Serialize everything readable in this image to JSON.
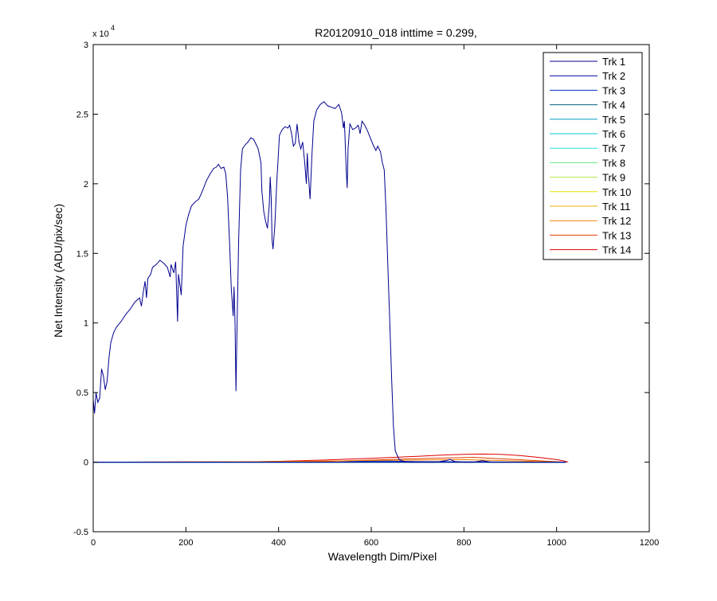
{
  "chart_data": {
    "type": "line",
    "title": "R20120910_018 inttime = 0.299,",
    "xlabel": "Wavelength Dim/Pixel",
    "ylabel": "Net Intensity (ADU/pix/sec)",
    "xlim": [
      0,
      1200
    ],
    "ylim": [
      -5000,
      30000
    ],
    "x_ticks": [
      0,
      200,
      400,
      600,
      800,
      1000,
      1200
    ],
    "x_tick_labels": [
      "0",
      "200",
      "400",
      "600",
      "800",
      "1000",
      "1200"
    ],
    "y_ticks": [
      -5000,
      0,
      5000,
      10000,
      15000,
      20000,
      25000,
      30000
    ],
    "y_tick_labels": [
      "-0.5",
      "0",
      "0.5",
      "1",
      "1.5",
      "2",
      "2.5",
      "3"
    ],
    "y_exponent_base": "x 10",
    "y_exponent_power": "4",
    "legend_position": "top-right",
    "grid": false,
    "series": [
      {
        "name": "Trk 1",
        "color": "#00008F",
        "points": [
          [
            0,
            4500
          ],
          [
            3,
            3500
          ],
          [
            6,
            5000
          ],
          [
            10,
            4300
          ],
          [
            14,
            4600
          ],
          [
            18,
            6700
          ],
          [
            22,
            6200
          ],
          [
            26,
            5200
          ],
          [
            30,
            5800
          ],
          [
            34,
            7500
          ],
          [
            38,
            8600
          ],
          [
            44,
            9300
          ],
          [
            50,
            9700
          ],
          [
            60,
            10100
          ],
          [
            70,
            10600
          ],
          [
            80,
            11000
          ],
          [
            90,
            11500
          ],
          [
            100,
            11800
          ],
          [
            104,
            11200
          ],
          [
            108,
            12200
          ],
          [
            112,
            13000
          ],
          [
            115,
            11800
          ],
          [
            118,
            13200
          ],
          [
            124,
            13500
          ],
          [
            128,
            14000
          ],
          [
            136,
            14200
          ],
          [
            144,
            14500
          ],
          [
            152,
            14300
          ],
          [
            160,
            14000
          ],
          [
            166,
            13300
          ],
          [
            168,
            14200
          ],
          [
            174,
            13600
          ],
          [
            178,
            14400
          ],
          [
            182,
            10100
          ],
          [
            184,
            13500
          ],
          [
            188,
            12500
          ],
          [
            190,
            12000
          ],
          [
            194,
            15500
          ],
          [
            200,
            17000
          ],
          [
            206,
            17800
          ],
          [
            212,
            18400
          ],
          [
            220,
            18700
          ],
          [
            228,
            18900
          ],
          [
            236,
            19500
          ],
          [
            244,
            20200
          ],
          [
            252,
            20700
          ],
          [
            260,
            21100
          ],
          [
            266,
            21200
          ],
          [
            270,
            21400
          ],
          [
            276,
            21100
          ],
          [
            282,
            21200
          ],
          [
            286,
            20700
          ],
          [
            290,
            19000
          ],
          [
            294,
            16000
          ],
          [
            298,
            12500
          ],
          [
            302,
            10500
          ],
          [
            304,
            12600
          ],
          [
            306,
            10000
          ],
          [
            308,
            5100
          ],
          [
            310,
            9000
          ],
          [
            314,
            16000
          ],
          [
            318,
            21000
          ],
          [
            322,
            22500
          ],
          [
            328,
            22800
          ],
          [
            334,
            23000
          ],
          [
            340,
            23300
          ],
          [
            346,
            23200
          ],
          [
            352,
            22800
          ],
          [
            356,
            22500
          ],
          [
            362,
            21500
          ],
          [
            364,
            19500
          ],
          [
            368,
            18000
          ],
          [
            372,
            17300
          ],
          [
            376,
            16800
          ],
          [
            380,
            18500
          ],
          [
            382,
            20500
          ],
          [
            384,
            19000
          ],
          [
            386,
            16000
          ],
          [
            388,
            15300
          ],
          [
            392,
            17000
          ],
          [
            396,
            20000
          ],
          [
            402,
            23500
          ],
          [
            408,
            23900
          ],
          [
            414,
            24100
          ],
          [
            420,
            24000
          ],
          [
            424,
            24200
          ],
          [
            428,
            23600
          ],
          [
            432,
            22700
          ],
          [
            436,
            22900
          ],
          [
            440,
            24300
          ],
          [
            444,
            23000
          ],
          [
            448,
            22500
          ],
          [
            452,
            23000
          ],
          [
            456,
            21700
          ],
          [
            460,
            20000
          ],
          [
            462,
            22200
          ],
          [
            464,
            20800
          ],
          [
            468,
            18900
          ],
          [
            472,
            22000
          ],
          [
            476,
            24500
          ],
          [
            482,
            25300
          ],
          [
            490,
            25700
          ],
          [
            498,
            25900
          ],
          [
            506,
            25600
          ],
          [
            514,
            25500
          ],
          [
            522,
            25400
          ],
          [
            530,
            25700
          ],
          [
            536,
            25100
          ],
          [
            540,
            24000
          ],
          [
            542,
            24500
          ],
          [
            546,
            21000
          ],
          [
            548,
            19700
          ],
          [
            550,
            22500
          ],
          [
            554,
            24300
          ],
          [
            560,
            23900
          ],
          [
            566,
            24000
          ],
          [
            572,
            24200
          ],
          [
            576,
            23600
          ],
          [
            580,
            24500
          ],
          [
            586,
            24200
          ],
          [
            592,
            23800
          ],
          [
            598,
            23300
          ],
          [
            604,
            22800
          ],
          [
            610,
            22400
          ],
          [
            614,
            22700
          ],
          [
            620,
            22300
          ],
          [
            624,
            21500
          ],
          [
            628,
            21000
          ],
          [
            632,
            18000
          ],
          [
            636,
            14000
          ],
          [
            640,
            10000
          ],
          [
            644,
            6000
          ],
          [
            648,
            2500
          ],
          [
            652,
            800
          ],
          [
            660,
            200
          ],
          [
            670,
            50
          ],
          [
            680,
            0
          ],
          [
            690,
            0
          ],
          [
            700,
            0
          ],
          [
            720,
            0
          ],
          [
            740,
            0
          ],
          [
            760,
            100
          ],
          [
            770,
            200
          ],
          [
            780,
            50
          ],
          [
            800,
            0
          ],
          [
            820,
            0
          ],
          [
            840,
            100
          ],
          [
            860,
            0
          ],
          [
            880,
            0
          ],
          [
            900,
            0
          ],
          [
            1020,
            0
          ]
        ]
      },
      {
        "name": "Trk 2",
        "color": "#00009F",
        "points": [
          [
            0,
            0
          ],
          [
            1020,
            0
          ]
        ]
      },
      {
        "name": "Trk 3",
        "color": "#0030C0",
        "points": [
          [
            0,
            0
          ],
          [
            520,
            0
          ],
          [
            580,
            60
          ],
          [
            640,
            80
          ],
          [
            700,
            40
          ],
          [
            1020,
            0
          ]
        ]
      },
      {
        "name": "Trk 4",
        "color": "#006080",
        "points": [
          [
            0,
            0
          ],
          [
            1020,
            0
          ]
        ]
      },
      {
        "name": "Trk 5",
        "color": "#00A0C0",
        "points": [
          [
            0,
            0
          ],
          [
            1020,
            0
          ]
        ]
      },
      {
        "name": "Trk 6",
        "color": "#00C8D8",
        "points": [
          [
            0,
            0
          ],
          [
            1020,
            0
          ]
        ]
      },
      {
        "name": "Trk 7",
        "color": "#20E0E0",
        "points": [
          [
            0,
            0
          ],
          [
            1020,
            0
          ]
        ]
      },
      {
        "name": "Trk 8",
        "color": "#60E880",
        "points": [
          [
            0,
            0
          ],
          [
            1020,
            0
          ]
        ]
      },
      {
        "name": "Trk 9",
        "color": "#B0E840",
        "points": [
          [
            0,
            0
          ],
          [
            1020,
            0
          ]
        ]
      },
      {
        "name": "Trk 10",
        "color": "#E8E000",
        "points": [
          [
            0,
            0
          ],
          [
            1020,
            0
          ]
        ]
      },
      {
        "name": "Trk 11",
        "color": "#F0B000",
        "points": [
          [
            0,
            0
          ],
          [
            1020,
            0
          ]
        ]
      },
      {
        "name": "Trk 12",
        "color": "#F08000",
        "points": [
          [
            0,
            0
          ],
          [
            400,
            40
          ],
          [
            600,
            120
          ],
          [
            800,
            180
          ],
          [
            1020,
            0
          ]
        ]
      },
      {
        "name": "Trk 13",
        "color": "#E04000",
        "points": [
          [
            0,
            0
          ],
          [
            500,
            50
          ],
          [
            700,
            250
          ],
          [
            820,
            350
          ],
          [
            1020,
            0
          ]
        ]
      },
      {
        "name": "Trk 14",
        "color": "#E00000",
        "points": [
          [
            0,
            0
          ],
          [
            200,
            0
          ],
          [
            300,
            0
          ],
          [
            400,
            60
          ],
          [
            500,
            150
          ],
          [
            600,
            280
          ],
          [
            700,
            420
          ],
          [
            760,
            520
          ],
          [
            800,
            560
          ],
          [
            840,
            580
          ],
          [
            880,
            560
          ],
          [
            920,
            480
          ],
          [
            960,
            350
          ],
          [
            1000,
            180
          ],
          [
            1020,
            60
          ],
          [
            1025,
            0
          ]
        ]
      }
    ]
  }
}
